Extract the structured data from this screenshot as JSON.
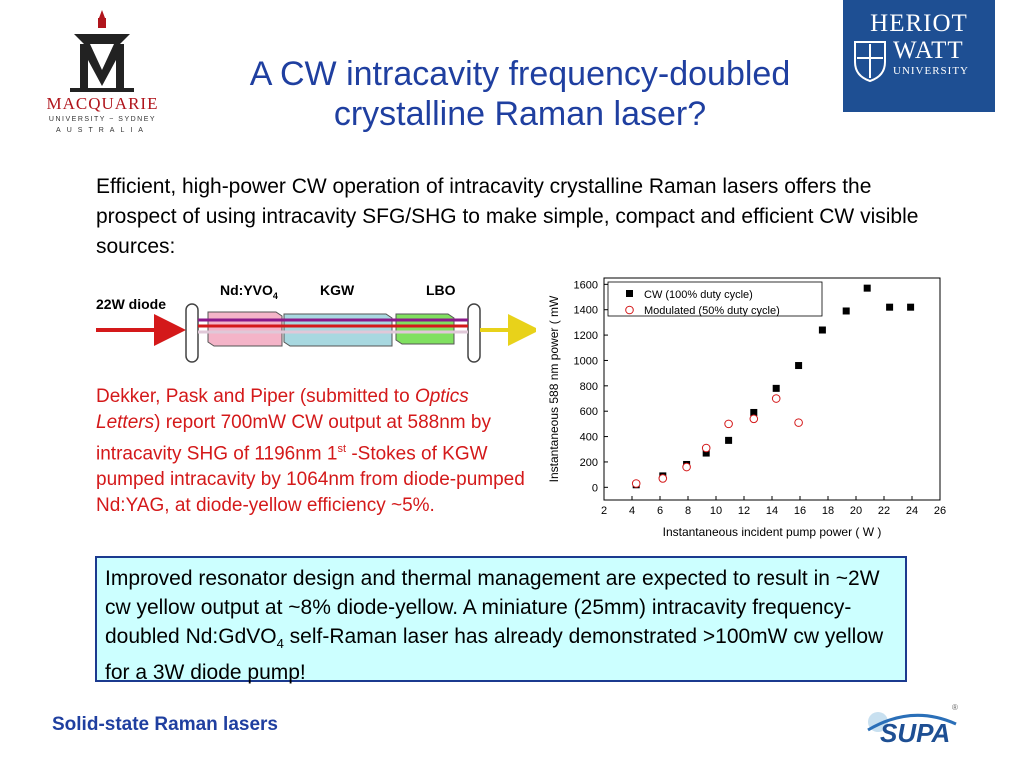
{
  "logos": {
    "left": {
      "name": "MACQUARIE",
      "sub": "UNIVERSITY ~ SYDNEY",
      "country": "AUSTRALIA"
    },
    "right": {
      "line1": "HERIOT",
      "line2": "WATT",
      "line3": "UNIVERSITY"
    },
    "bottom": {
      "name": "SUPA"
    }
  },
  "title": {
    "line1": "A CW intracavity frequency-doubled",
    "line2": "crystalline Raman laser?"
  },
  "intro": "Efficient, high-power CW operation of intracavity crystalline Raman lasers offers the prospect of using intracavity SFG/SHG to make simple, compact and efficient CW visible sources:",
  "diagram": {
    "pump_label": "22W diode",
    "crystal1_label": "Nd:YVO",
    "crystal1_sub": "4",
    "crystal2_label": "KGW",
    "crystal3_label": "LBO"
  },
  "red_text": {
    "part1": "Dekker, Pask and Piper (submitted to ",
    "journal": "Optics Letters",
    "part2": ") report 700mW CW output at 588nm by intracavity SHG of 1196nm 1",
    "sup": "st",
    "part3": " -Stokes of KGW pumped intracavity by 1064nm from diode-pumped Nd:YAG, at diode-yellow efficiency ~5%."
  },
  "chart_data": {
    "type": "scatter",
    "xlabel": "Instantaneous incident pump power  ( W )",
    "ylabel": "Instantaneous 588 nm power  ( mW",
    "xlim": [
      2,
      26
    ],
    "ylim": [
      -100,
      1650
    ],
    "xticks": [
      2,
      4,
      6,
      8,
      10,
      12,
      14,
      16,
      18,
      20,
      22,
      24,
      26
    ],
    "yticks": [
      0,
      200,
      400,
      600,
      800,
      1000,
      1200,
      1400,
      1600
    ],
    "legend_position": "top-left",
    "series": [
      {
        "name": "CW (100% duty cycle)",
        "marker": "filled-square",
        "color": "#000000",
        "x": [
          4.3,
          6.2,
          7.9,
          9.3,
          10.9,
          12.7,
          14.3,
          15.9,
          17.6,
          19.3,
          20.8,
          22.4,
          23.9
        ],
        "y": [
          20,
          90,
          180,
          270,
          370,
          590,
          780,
          960,
          1240,
          1390,
          1570,
          1420,
          1420
        ]
      },
      {
        "name": "Modulated (50% duty cycle)",
        "marker": "open-circle",
        "color": "#d4191a",
        "x": [
          4.3,
          6.2,
          7.9,
          9.3,
          10.9,
          12.7,
          14.3,
          15.9
        ],
        "y": [
          30,
          70,
          160,
          310,
          500,
          540,
          700,
          510
        ]
      }
    ]
  },
  "box_text": {
    "part1": "Improved resonator design and thermal management are expected to result in ~2W cw yellow output at ~8% diode-yellow. A miniature (25mm) intracavity frequency-doubled Nd:GdVO",
    "sub": "4",
    "part2": " self-Raman laser has already demonstrated >100mW cw yellow for a 3W diode pump!"
  },
  "footer": "Solid-state Raman lasers"
}
